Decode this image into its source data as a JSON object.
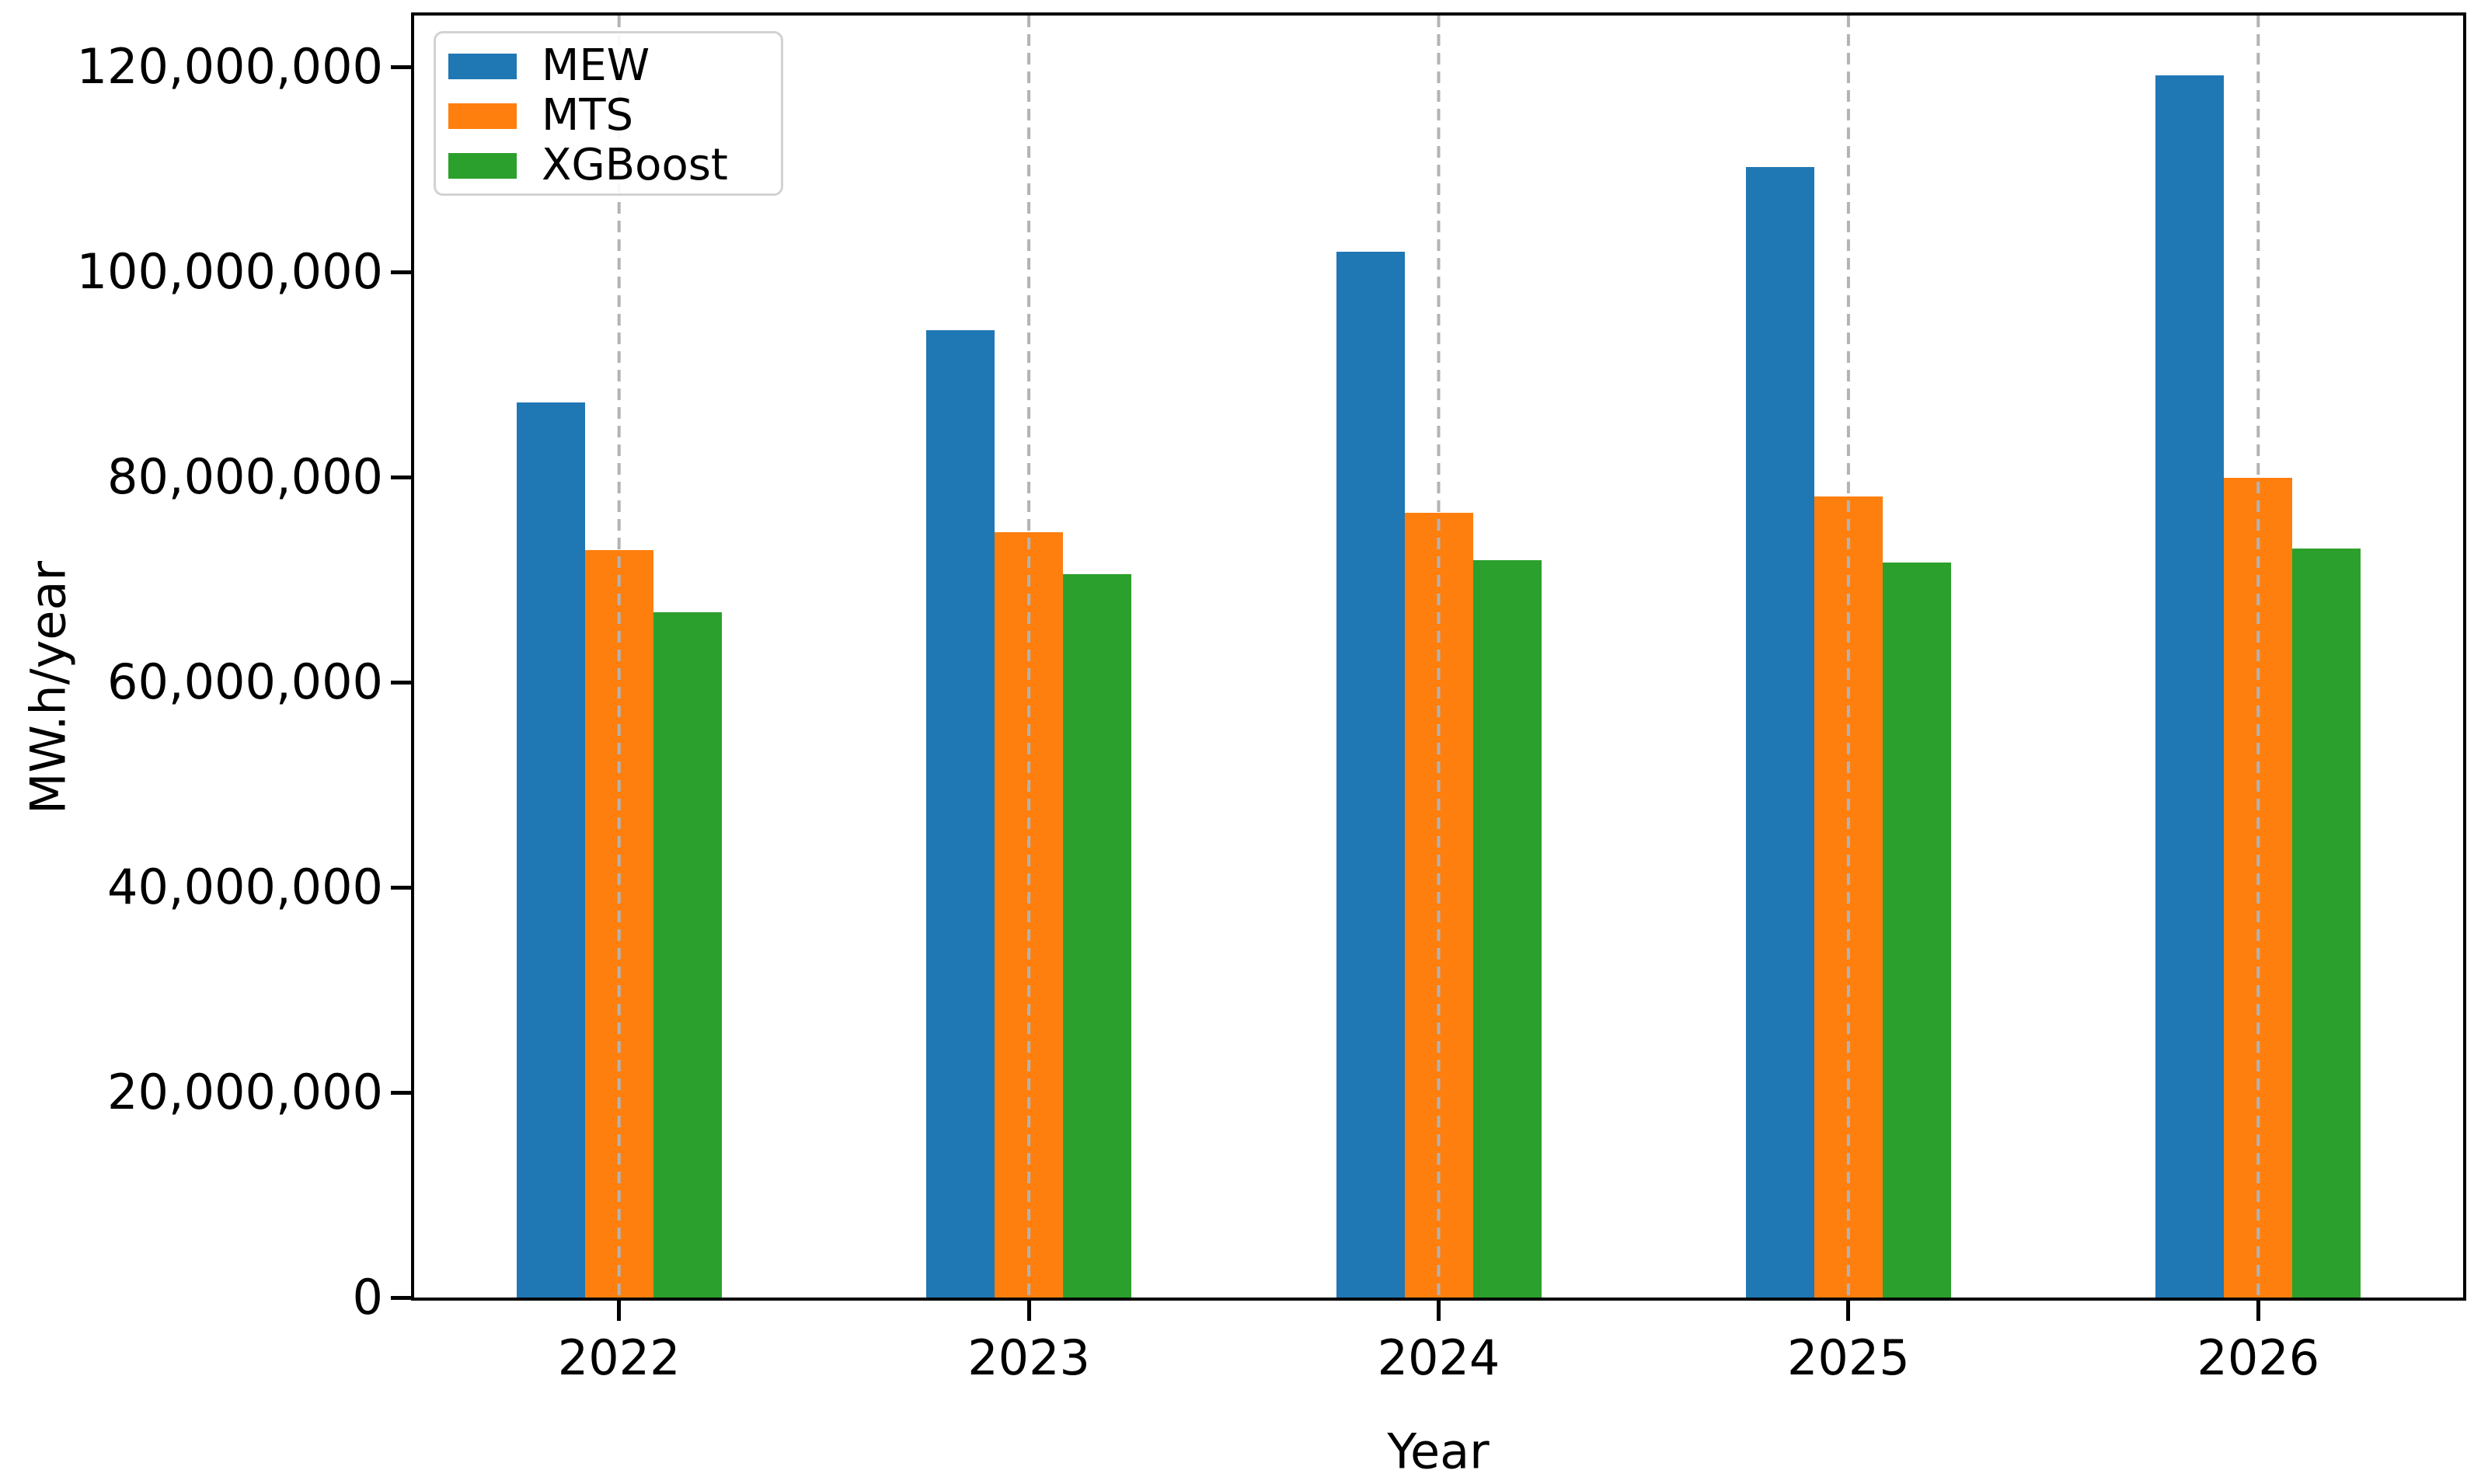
{
  "chart_data": {
    "type": "bar",
    "title": "",
    "xlabel": "Year",
    "ylabel": "MW.h/year",
    "categories": [
      "2022",
      "2023",
      "2024",
      "2025",
      "2026"
    ],
    "series": [
      {
        "name": "MEW",
        "color": "#1f77b4",
        "values": [
          87300000,
          94300000,
          102000000,
          110200000,
          119200000
        ]
      },
      {
        "name": "MTS",
        "color": "#ff7f0e",
        "values": [
          72900000,
          74600000,
          76500000,
          78100000,
          79900000
        ]
      },
      {
        "name": "XGBoost",
        "color": "#2ca02c",
        "values": [
          66800000,
          70500000,
          71900000,
          71700000,
          73000000
        ]
      }
    ],
    "y_ticks": [
      {
        "value": 0,
        "label": "0"
      },
      {
        "value": 20000000,
        "label": "20,000,000"
      },
      {
        "value": 40000000,
        "label": "40,000,000"
      },
      {
        "value": 60000000,
        "label": "60,000,000"
      },
      {
        "value": 80000000,
        "label": "80,000,000"
      },
      {
        "value": 100000000,
        "label": "100,000,000"
      },
      {
        "value": 120000000,
        "label": "120,000,000"
      }
    ],
    "ylim": [
      0,
      125000000
    ],
    "xlim": [
      -0.5,
      4.5
    ],
    "grid": "vertical-dashed-at-categories",
    "gridline_color": "#b3b3b3",
    "legend_position": "upper-left",
    "axis_color": "#000000"
  }
}
